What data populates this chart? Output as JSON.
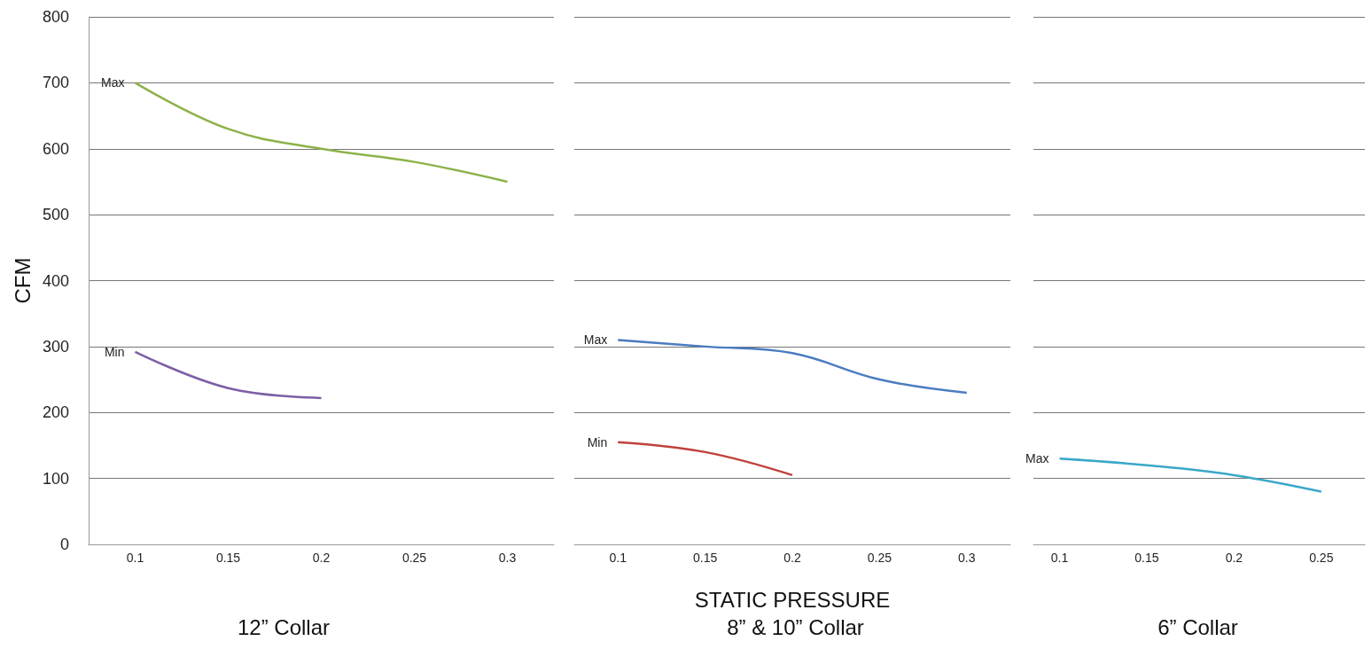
{
  "chart_data": [
    {
      "type": "line",
      "title": "12” Collar",
      "ylabel": "CFM",
      "xlim": [
        0.075,
        0.325
      ],
      "xticks": [
        0.1,
        0.15,
        0.2,
        0.25,
        0.3
      ],
      "ylim": [
        0,
        800
      ],
      "yticks": [
        0,
        100,
        200,
        300,
        400,
        500,
        600,
        700,
        800
      ],
      "grid": "y",
      "marker": "none",
      "series": [
        {
          "name": "Max",
          "color": "#8db24a",
          "x": [
            0.1,
            0.15,
            0.2,
            0.25,
            0.3
          ],
          "values": [
            700,
            630,
            600,
            580,
            550
          ]
        },
        {
          "name": "Min",
          "color": "#7b5fa5",
          "x": [
            0.1,
            0.15,
            0.2
          ],
          "values": [
            292,
            237,
            222
          ]
        }
      ]
    },
    {
      "type": "line",
      "title": "8” & 10” Collar",
      "xlabel": "STATIC PRESSURE",
      "xlim": [
        0.075,
        0.325
      ],
      "xticks": [
        0.1,
        0.15,
        0.2,
        0.25,
        0.3
      ],
      "ylim": [
        0,
        800
      ],
      "yticks": [
        0,
        100,
        200,
        300,
        400,
        500,
        600,
        700,
        800
      ],
      "grid": "y",
      "marker": "none",
      "tick_labels": "x",
      "series": [
        {
          "name": "Max",
          "color": "#4a7cc0",
          "x": [
            0.1,
            0.15,
            0.2,
            0.25,
            0.3
          ],
          "values": [
            310,
            300,
            290,
            250,
            230
          ]
        },
        {
          "name": "Min",
          "color": "#c0413c",
          "x": [
            0.1,
            0.15,
            0.2
          ],
          "values": [
            155,
            140,
            105
          ]
        }
      ]
    },
    {
      "type": "line",
      "title": "6” Collar",
      "xlim": [
        0.085,
        0.275
      ],
      "xticks": [
        0.1,
        0.15,
        0.2,
        0.25
      ],
      "ylim": [
        0,
        800
      ],
      "yticks": [
        0,
        100,
        200,
        300,
        400,
        500,
        600,
        700,
        800
      ],
      "grid": "y",
      "marker": "none",
      "tick_labels": "x",
      "series": [
        {
          "name": "Max",
          "color": "#3aa7c9",
          "x": [
            0.1,
            0.15,
            0.2,
            0.25
          ],
          "values": [
            130,
            120,
            105,
            80
          ]
        }
      ]
    }
  ]
}
